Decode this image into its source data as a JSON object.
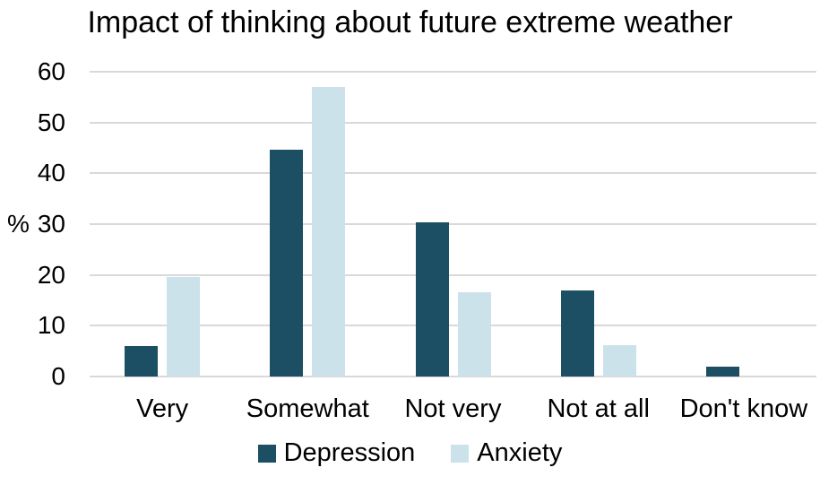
{
  "background_color": "#FFFFFF",
  "chart_data": {
    "type": "bar",
    "title": "Impact of thinking about future extreme weather",
    "categories": [
      "Very",
      "Somewhat",
      "Not very",
      "Not at all",
      "Don't know"
    ],
    "series": [
      {
        "name": "Depression",
        "color": "#1C4F63",
        "values": [
          6,
          44.7,
          30.3,
          17,
          2
        ]
      },
      {
        "name": "Anxiety",
        "color": "#CBE2EB",
        "values": [
          19.6,
          57,
          16.6,
          6.2,
          0
        ]
      }
    ],
    "xlabel": "",
    "ylabel": "%",
    "ylim": [
      0,
      60
    ],
    "yticks": [
      0,
      10,
      20,
      30,
      40,
      50,
      60
    ],
    "grid": true,
    "gridline_color": "#D9D9D9",
    "legend_position": "bottom"
  }
}
